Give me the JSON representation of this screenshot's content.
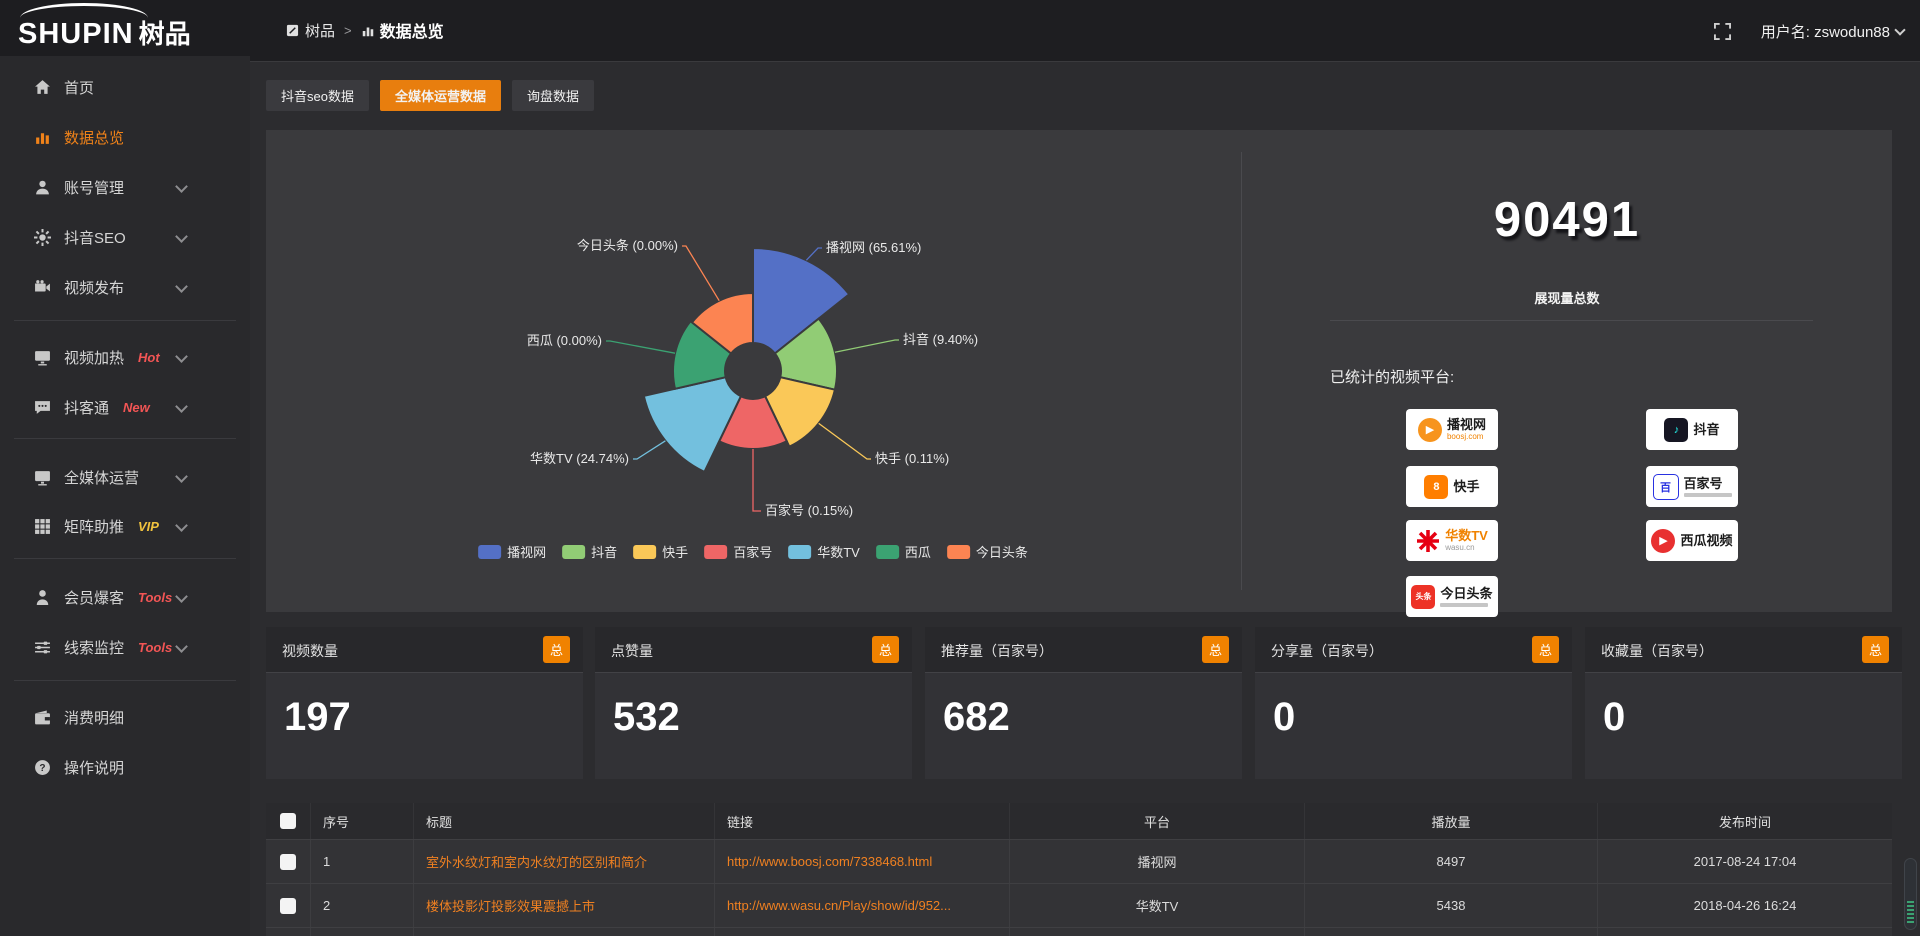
{
  "logo": {
    "latin": "SHUPIN",
    "cjk": "树品"
  },
  "topbar": {
    "breadcrumb_root": "树品",
    "breadcrumb_sep": ">",
    "breadcrumb_current": "数据总览",
    "username": "用户名: zswodun88"
  },
  "sidebar": {
    "items": [
      {
        "label": "首页",
        "icon": "home",
        "badge": null,
        "badge_color": null,
        "chevron": false,
        "active": false
      },
      {
        "label": "数据总览",
        "icon": "chart",
        "badge": null,
        "badge_color": null,
        "chevron": false,
        "active": true
      },
      {
        "label": "账号管理",
        "icon": "user",
        "badge": null,
        "badge_color": null,
        "chevron": true,
        "active": false
      },
      {
        "label": "抖音SEO",
        "icon": "gear",
        "badge": null,
        "badge_color": null,
        "chevron": true,
        "active": false
      },
      {
        "label": "视频发布",
        "icon": "video",
        "badge": null,
        "badge_color": null,
        "chevron": true,
        "active": false
      },
      {
        "label": "视频加热",
        "icon": "heat",
        "badge": "Hot",
        "badge_color": "#f25555",
        "chevron": true,
        "active": false
      },
      {
        "label": "抖客通",
        "icon": "chat",
        "badge": "New",
        "badge_color": "#f25555",
        "chevron": true,
        "active": false
      },
      {
        "label": "全媒体运营",
        "icon": "monitor",
        "badge": null,
        "badge_color": null,
        "chevron": true,
        "active": false
      },
      {
        "label": "矩阵助推",
        "icon": "grid",
        "badge": "VIP",
        "badge_color": "#f0c23e",
        "chevron": true,
        "active": false
      },
      {
        "label": "会员爆客",
        "icon": "member",
        "badge": "Tools",
        "badge_color": "#f25555",
        "chevron": true,
        "active": false
      },
      {
        "label": "线索监控",
        "icon": "sliders",
        "badge": "Tools",
        "badge_color": "#f25555",
        "chevron": true,
        "active": false
      },
      {
        "label": "消费明细",
        "icon": "wallet",
        "badge": null,
        "badge_color": null,
        "chevron": false,
        "active": false
      },
      {
        "label": "操作说明",
        "icon": "question",
        "badge": null,
        "badge_color": null,
        "chevron": false,
        "active": false
      }
    ]
  },
  "tabs": [
    {
      "label": "抖音seo数据",
      "active": false
    },
    {
      "label": "全媒体运营数据",
      "active": true
    },
    {
      "label": "询盘数据",
      "active": false
    }
  ],
  "chart_data": {
    "type": "pie",
    "variant": "nightingale-rose",
    "inner_radius": 28,
    "equal_angles": true,
    "legend_position": "bottom",
    "slices": [
      {
        "name": "播视网",
        "percent": 65.61,
        "display": "播视网 (65.61%)",
        "color": "#5470c6",
        "radius": 123
      },
      {
        "name": "抖音",
        "percent": 9.4,
        "display": "抖音 (9.40%)",
        "color": "#91cc75",
        "radius": 84
      },
      {
        "name": "快手",
        "percent": 0.11,
        "display": "快手 (0.11%)",
        "color": "#fac858",
        "radius": 84
      },
      {
        "name": "百家号",
        "percent": 0.15,
        "display": "百家号 (0.15%)",
        "color": "#ee6666",
        "radius": 78
      },
      {
        "name": "华数TV",
        "percent": 24.74,
        "display": "华数TV (24.74%)",
        "color": "#73c0de",
        "radius": 112
      },
      {
        "name": "西瓜",
        "percent": 0.0,
        "display": "西瓜 (0.00%)",
        "color": "#3ba272",
        "radius": 80
      },
      {
        "name": "今日头条",
        "percent": 0.0,
        "display": "今日头条 (0.00%)",
        "color": "#fc8452",
        "radius": 78
      }
    ],
    "legend": [
      "播视网",
      "抖音",
      "快手",
      "百家号",
      "华数TV",
      "西瓜",
      "今日头条"
    ]
  },
  "summary": {
    "total_value": "90491",
    "total_label": "展现量总数",
    "platforms_label": "已统计的视频平台:",
    "platform_badges": [
      {
        "name": "播视网",
        "sub": "boosj.com",
        "sub_color": "#f08200",
        "sub_bar": false,
        "logo": "play",
        "logo_color": "#f7941d",
        "logo_shape": "circle",
        "name_color": "#1c1c1c"
      },
      {
        "name": "抖音",
        "sub": null,
        "sub_color": null,
        "sub_bar": false,
        "logo": "note",
        "logo_color": "#161623",
        "logo_shape": "square",
        "name_color": "#1c1c1c"
      },
      {
        "name": "快手",
        "sub": null,
        "sub_color": null,
        "sub_bar": false,
        "logo": "kuai",
        "logo_color": "#ff7e00",
        "logo_shape": "square",
        "name_color": "#1c1c1c"
      },
      {
        "name": "百家号",
        "sub": null,
        "sub_color": null,
        "sub_bar": true,
        "logo": "bai",
        "logo_color": "#ffffff",
        "logo_shape": "square",
        "name_color": "#1c1c1c"
      },
      {
        "name": "华数TV",
        "sub": "wasu.cn",
        "sub_color": "#9a9a9a",
        "sub_bar": false,
        "logo": "burst",
        "logo_color": "#e60012",
        "logo_shape": "plain",
        "name_color": "#f08200"
      },
      {
        "name": "西瓜视频",
        "sub": null,
        "sub_color": null,
        "sub_bar": false,
        "logo": "play",
        "logo_color": "#e83030",
        "logo_shape": "circle",
        "name_color": "#1c1c1c"
      },
      {
        "name": "今日头条",
        "sub": null,
        "sub_color": null,
        "sub_bar": true,
        "logo": "toutiao",
        "logo_color": "#ed3226",
        "logo_shape": "square",
        "name_color": "#1c1c1c"
      }
    ]
  },
  "stat_cards": [
    {
      "title": "视频数量",
      "badge": "总",
      "value": "197"
    },
    {
      "title": "点赞量",
      "badge": "总",
      "value": "532"
    },
    {
      "title": "推荐量（百家号）",
      "badge": "总",
      "value": "682"
    },
    {
      "title": "分享量（百家号）",
      "badge": "总",
      "value": "0"
    },
    {
      "title": "收藏量（百家号）",
      "badge": "总",
      "value": "0"
    }
  ],
  "table": {
    "headers": [
      "序号",
      "标题",
      "链接",
      "平台",
      "播放量",
      "发布时间"
    ],
    "rows": [
      {
        "no": "1",
        "title": "室外水纹灯和室内水纹灯的区别和简介",
        "link": "http://www.boosj.com/7338468.html",
        "platform": "播视网",
        "plays": "8497",
        "time": "2017-08-24 17:04"
      },
      {
        "no": "2",
        "title": "楼体投影灯投影效果震撼上市",
        "link": "http://www.wasu.cn/Play/show/id/952...",
        "platform": "华数TV",
        "plays": "5438",
        "time": "2018-04-26 16:24"
      },
      {
        "no": "",
        "title": "",
        "link": "",
        "platform": "",
        "plays": "",
        "time": ""
      }
    ]
  },
  "colors": {
    "accent_orange": "#e87e0e",
    "sidebar_active": "#f08219",
    "link_orange": "#ef8021",
    "total_badge_orange": "#f08200"
  }
}
